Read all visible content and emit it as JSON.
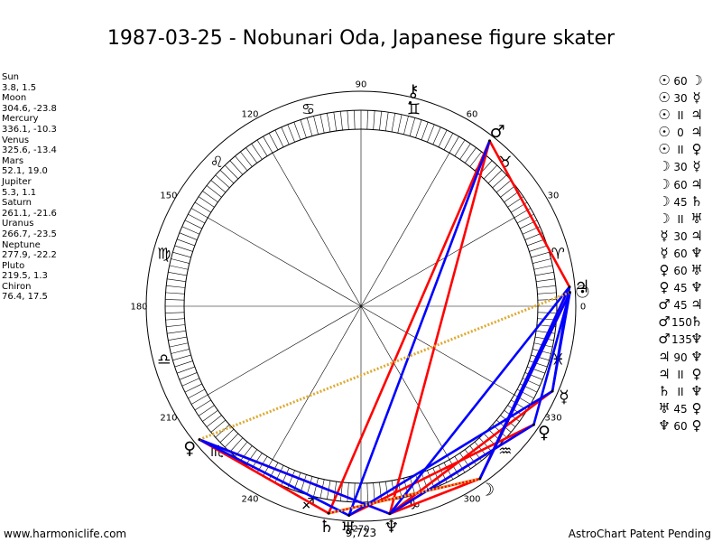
{
  "title": "1987-03-25 - Nobunari Oda, Japanese figure skater",
  "positions": [
    {
      "name": "Sun",
      "value": "3.8, 1.5"
    },
    {
      "name": "Moon",
      "value": "304.6, -23.8"
    },
    {
      "name": "Mercury",
      "value": "336.1, -10.3"
    },
    {
      "name": "Venus",
      "value": "325.6, -13.4"
    },
    {
      "name": "Mars",
      "value": "52.1, 19.0"
    },
    {
      "name": "Jupiter",
      "value": "5.3, 1.1"
    },
    {
      "name": "Saturn",
      "value": "261.1, -21.6"
    },
    {
      "name": "Uranus",
      "value": "266.7, -23.5"
    },
    {
      "name": "Neptune",
      "value": "277.9, -22.2"
    },
    {
      "name": "Pluto",
      "value": "219.5, 1.3"
    },
    {
      "name": "Chiron",
      "value": "76.4, 17.5"
    }
  ],
  "aspects": [
    {
      "g1": "☉",
      "asp": "60",
      "g2": "☽"
    },
    {
      "g1": "☉",
      "asp": "30",
      "g2": "☿"
    },
    {
      "g1": "☉",
      "asp": "II",
      "g2": "♃"
    },
    {
      "g1": "☉",
      "asp": "0",
      "g2": "♃"
    },
    {
      "g1": "☉",
      "asp": "II",
      "g2": "♀"
    },
    {
      "g1": "☽",
      "asp": "30",
      "g2": "☿"
    },
    {
      "g1": "☽",
      "asp": "60",
      "g2": "♃"
    },
    {
      "g1": "☽",
      "asp": "45",
      "g2": "♄"
    },
    {
      "g1": "☽",
      "asp": "II",
      "g2": "♅"
    },
    {
      "g1": "☿",
      "asp": "30",
      "g2": "♃"
    },
    {
      "g1": "☿",
      "asp": "60",
      "g2": "♆"
    },
    {
      "g1": "♀",
      "asp": "60",
      "g2": "♅"
    },
    {
      "g1": "♀",
      "asp": "45",
      "g2": "♆"
    },
    {
      "g1": "♂",
      "asp": "45",
      "g2": "♃"
    },
    {
      "g1": "♂",
      "asp": "150",
      "g2": "♄"
    },
    {
      "g1": "♂",
      "asp": "135",
      "g2": "♆"
    },
    {
      "g1": "♃",
      "asp": "90",
      "g2": "♆"
    },
    {
      "g1": "♃",
      "asp": "II",
      "g2": "♀"
    },
    {
      "g1": "♄",
      "asp": "II",
      "g2": "♆"
    },
    {
      "g1": "♅",
      "asp": "45",
      "g2": "♀"
    },
    {
      "g1": "♆",
      "asp": "60",
      "g2": "♀"
    }
  ],
  "degree_labels": [
    {
      "deg": 0,
      "text": "0"
    },
    {
      "deg": 30,
      "text": "30"
    },
    {
      "deg": 60,
      "text": "60"
    },
    {
      "deg": 90,
      "text": "90"
    },
    {
      "deg": 120,
      "text": "120"
    },
    {
      "deg": 150,
      "text": "150"
    },
    {
      "deg": 180,
      "text": "180"
    },
    {
      "deg": 210,
      "text": "210"
    },
    {
      "deg": 240,
      "text": "240"
    },
    {
      "deg": 270,
      "text": "270"
    },
    {
      "deg": 300,
      "text": "300"
    },
    {
      "deg": 330,
      "text": "330"
    }
  ],
  "signs": [
    {
      "name": "aries",
      "glyph": "♈",
      "deg": 15
    },
    {
      "name": "taurus",
      "glyph": "♉",
      "deg": 45
    },
    {
      "name": "gemini",
      "glyph": "♊",
      "deg": 75
    },
    {
      "name": "cancer",
      "glyph": "♋",
      "deg": 105
    },
    {
      "name": "leo",
      "glyph": "♌",
      "deg": 135
    },
    {
      "name": "virgo",
      "glyph": "♍",
      "deg": 165
    },
    {
      "name": "libra",
      "glyph": "♎",
      "deg": 195
    },
    {
      "name": "scorpio",
      "glyph": "♏",
      "deg": 225
    },
    {
      "name": "sagittarius",
      "glyph": "♐",
      "deg": 255
    },
    {
      "name": "capricorn",
      "glyph": "♑",
      "deg": 285
    },
    {
      "name": "aquarius",
      "glyph": "♒",
      "deg": 315
    },
    {
      "name": "pisces",
      "glyph": "♓",
      "deg": 345
    }
  ],
  "bodies": [
    {
      "name": "sun",
      "glyph": "☉",
      "lon": 3.8
    },
    {
      "name": "moon",
      "glyph": "☽",
      "lon": 304.6
    },
    {
      "name": "mercury",
      "glyph": "☿",
      "lon": 336.1
    },
    {
      "name": "venus",
      "glyph": "♀",
      "lon": 325.6
    },
    {
      "name": "mars",
      "glyph": "♂",
      "lon": 52.1
    },
    {
      "name": "jupiter",
      "glyph": "♃",
      "lon": 5.3
    },
    {
      "name": "saturn",
      "glyph": "♄",
      "lon": 261.1
    },
    {
      "name": "uranus",
      "glyph": "♅",
      "lon": 266.7
    },
    {
      "name": "neptune",
      "glyph": "♆",
      "lon": 277.9
    },
    {
      "name": "pluto",
      "glyph": "♀",
      "lon": 219.5
    },
    {
      "name": "chiron",
      "glyph": "⚷",
      "lon": 76.4
    }
  ],
  "aspect_lines": [
    {
      "from": 52.1,
      "to": 261.1,
      "color": "#ff0000"
    },
    {
      "from": 52.1,
      "to": 277.9,
      "color": "#ff0000"
    },
    {
      "from": 52.1,
      "to": 5.3,
      "color": "#ff0000"
    },
    {
      "from": 3.8,
      "to": 304.6,
      "color": "#ff0000"
    },
    {
      "from": 5.3,
      "to": 304.6,
      "color": "#ff0000"
    },
    {
      "from": 219.5,
      "to": 261.1,
      "color": "#ff0000"
    },
    {
      "from": 219.5,
      "to": 277.9,
      "color": "#ff0000"
    },
    {
      "from": 304.6,
      "to": 261.1,
      "color": "#ff0000"
    },
    {
      "from": 304.6,
      "to": 277.9,
      "color": "#ff0000"
    },
    {
      "from": 325.6,
      "to": 266.7,
      "color": "#ff0000"
    },
    {
      "from": 325.6,
      "to": 277.9,
      "color": "#ff0000"
    },
    {
      "from": 336.1,
      "to": 277.9,
      "color": "#ff0000"
    },
    {
      "from": 52.1,
      "to": 266.7,
      "color": "#0000ff"
    },
    {
      "from": 3.8,
      "to": 336.1,
      "color": "#0000ff"
    },
    {
      "from": 5.3,
      "to": 336.1,
      "color": "#0000ff"
    },
    {
      "from": 3.8,
      "to": 325.6,
      "color": "#0000ff"
    },
    {
      "from": 5.3,
      "to": 304.6,
      "color": "#0000ff"
    },
    {
      "from": 3.8,
      "to": 304.6,
      "color": "#0000ff"
    },
    {
      "from": 219.5,
      "to": 266.7,
      "color": "#0000ff"
    },
    {
      "from": 219.5,
      "to": 277.9,
      "color": "#0000ff"
    },
    {
      "from": 325.6,
      "to": 277.9,
      "color": "#0000ff"
    },
    {
      "from": 336.1,
      "to": 266.7,
      "color": "#0000ff"
    },
    {
      "from": 5.3,
      "to": 277.9,
      "color": "#0000ff"
    },
    {
      "from": 3.8,
      "to": 219.5,
      "color": "#ddaa33",
      "dotted": true
    },
    {
      "from": 304.6,
      "to": 261.1,
      "color": "#ddaa33",
      "dotted": true
    }
  ],
  "extra_label": "9,723",
  "footer": {
    "left": "www.harmoniclife.com",
    "right": "AstroChart Patent Pending"
  },
  "colors": {
    "square": "#ff0000",
    "trine": "#0000ff",
    "parallel": "#ddaa33"
  }
}
